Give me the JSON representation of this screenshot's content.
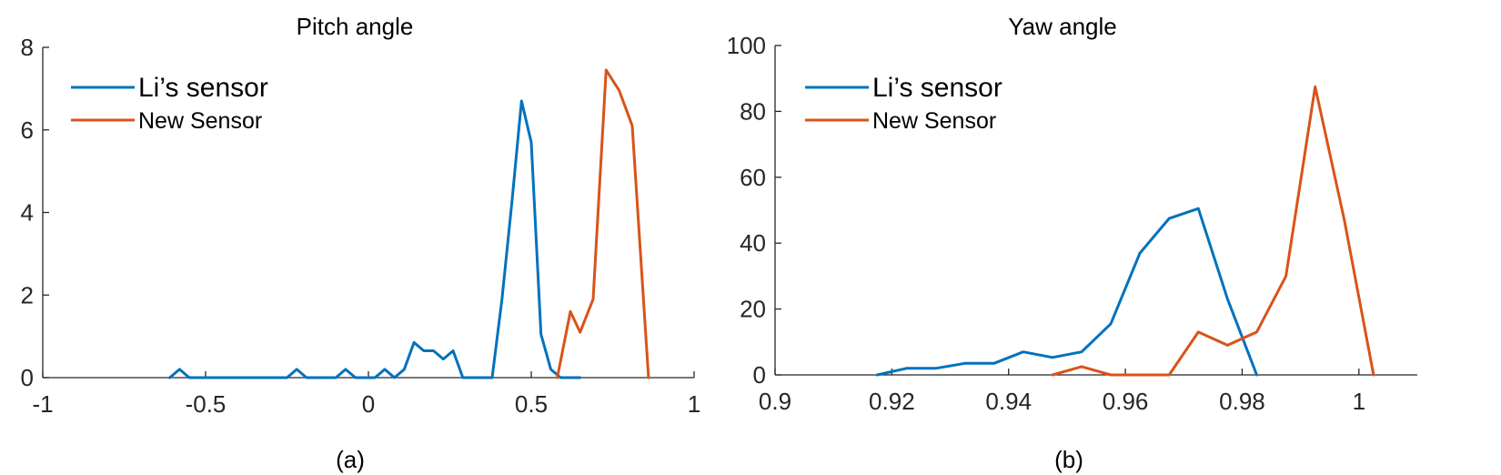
{
  "chart_data": [
    {
      "type": "line",
      "title": "Pitch angle",
      "caption": "(a)",
      "xlabel": "",
      "ylabel": "",
      "xlim": [
        -1,
        1
      ],
      "ylim": [
        0,
        8
      ],
      "xticks": [
        -1,
        -0.5,
        0,
        0.5,
        1
      ],
      "xtick_labels": [
        "-1",
        "-0.5",
        "0",
        "0.5",
        "1"
      ],
      "yticks": [
        0,
        2,
        4,
        6,
        8
      ],
      "ytick_labels": [
        "0",
        "2",
        "4",
        "6",
        "8"
      ],
      "grid": false,
      "legend_position": "top-left",
      "series": [
        {
          "name": "Li’s sensor",
          "color": "#0072BD",
          "x": [
            -0.61,
            -0.58,
            -0.55,
            -0.52,
            -0.49,
            -0.46,
            -0.43,
            -0.4,
            -0.37,
            -0.34,
            -0.31,
            -0.28,
            -0.25,
            -0.22,
            -0.19,
            -0.16,
            -0.13,
            -0.1,
            -0.07,
            -0.04,
            -0.01,
            0.02,
            0.05,
            0.08,
            0.11,
            0.14,
            0.17,
            0.2,
            0.23,
            0.26,
            0.29,
            0.32,
            0.35,
            0.38,
            0.41,
            0.44,
            0.47,
            0.5,
            0.53,
            0.56,
            0.59,
            0.62,
            0.65
          ],
          "y": [
            0,
            0.2,
            0,
            0,
            0,
            0,
            0,
            0,
            0,
            0,
            0,
            0,
            0,
            0.2,
            0,
            0,
            0,
            0,
            0.2,
            0,
            0,
            0,
            0.2,
            0,
            0.2,
            0.85,
            0.65,
            0.65,
            0.45,
            0.65,
            0,
            0,
            0,
            0,
            1.9,
            4.2,
            6.7,
            5.7,
            1.05,
            0.2,
            0,
            0,
            0
          ],
          "x_actual": [
            -0.61,
            -0.58,
            -0.55,
            -0.23,
            -0.2,
            -0.17,
            -0.08,
            -0.05,
            -0.02,
            0.02,
            0.05,
            0.08,
            0.12,
            0.15,
            0.19,
            0.22,
            0.26,
            0.29,
            0.33,
            0.4,
            0.43,
            0.47,
            0.5,
            0.54,
            0.57,
            0.61,
            0.65
          ]
        },
        {
          "name": "New Sensor",
          "color": "#D95319",
          "x": [
            0.58,
            0.62,
            0.65,
            0.69,
            0.73,
            0.77,
            0.81,
            0.86
          ],
          "y": [
            0,
            1.6,
            1.1,
            1.9,
            7.45,
            6.95,
            6.1,
            0
          ]
        }
      ]
    },
    {
      "type": "line",
      "title": "Yaw angle",
      "caption": "(b)",
      "xlabel": "",
      "ylabel": "",
      "xlim": [
        0.9,
        1.01
      ],
      "ylim": [
        0,
        100
      ],
      "xticks": [
        0.9,
        0.92,
        0.94,
        0.96,
        0.98,
        1
      ],
      "xtick_labels": [
        "0.9",
        "0.92",
        "0.94",
        "0.96",
        "0.98",
        "1"
      ],
      "yticks": [
        0,
        20,
        40,
        60,
        80,
        100
      ],
      "ytick_labels": [
        "0",
        "20",
        "40",
        "60",
        "80",
        "100"
      ],
      "grid": false,
      "legend_position": "top-left",
      "series": [
        {
          "name": "Li’s sensor",
          "color": "#0072BD",
          "x": [
            0.9175,
            0.9225,
            0.9275,
            0.9325,
            0.9375,
            0.9425,
            0.9475,
            0.9525,
            0.9575,
            0.9625,
            0.9675,
            0.9725,
            0.9775,
            0.9825
          ],
          "y": [
            0,
            2,
            2,
            3.5,
            3.5,
            7,
            5.3,
            7,
            15.5,
            37,
            47.5,
            50.5,
            23,
            0
          ]
        },
        {
          "name": "New Sensor",
          "color": "#D95319",
          "x": [
            0.9475,
            0.9525,
            0.9575,
            0.9625,
            0.9675,
            0.9725,
            0.9775,
            0.9825,
            0.9875,
            0.9925,
            0.9975,
            1.0025
          ],
          "y": [
            0,
            2.5,
            0,
            0,
            0,
            13,
            9,
            13,
            30,
            87.5,
            47,
            0
          ]
        }
      ]
    }
  ]
}
